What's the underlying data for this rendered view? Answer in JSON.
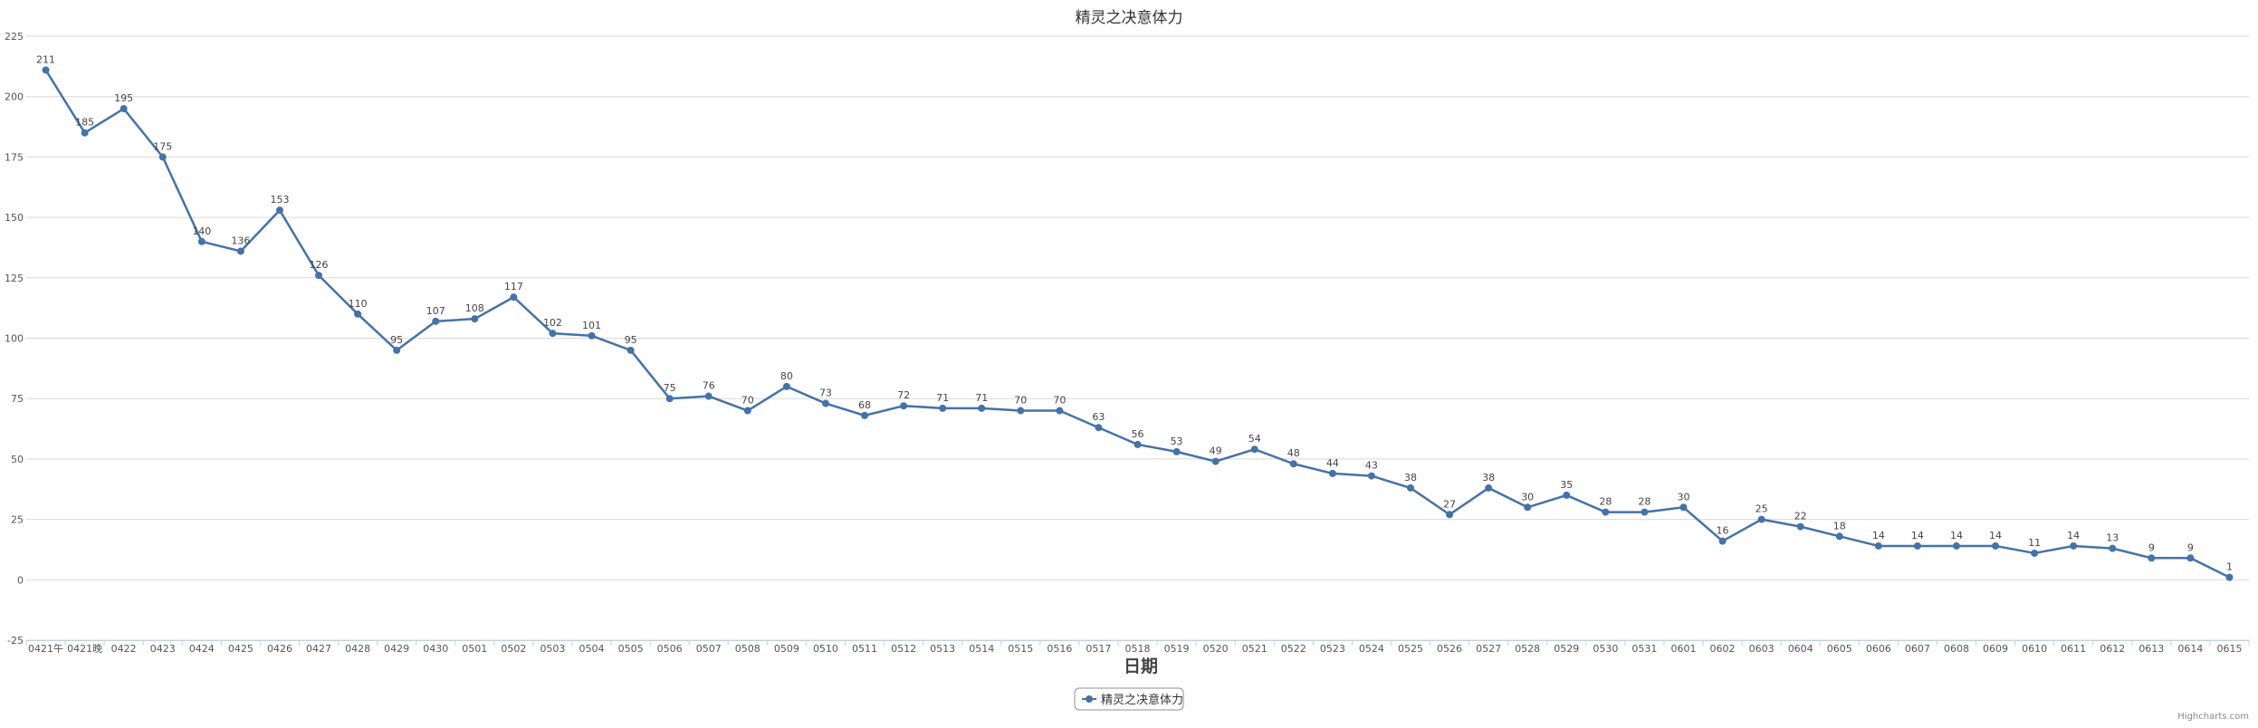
{
  "chart_data": {
    "type": "line",
    "title": "精灵之决意体力",
    "xlabel": "日期",
    "ylabel": "",
    "ylim": [
      -25,
      225
    ],
    "yticks": [
      -25,
      0,
      25,
      50,
      75,
      100,
      125,
      150,
      175,
      200,
      225
    ],
    "grid": true,
    "legend_position": "bottom-center",
    "categories": [
      "0421午",
      "0421晚",
      "0422",
      "0423",
      "0424",
      "0425",
      "0426",
      "0427",
      "0428",
      "0429",
      "0430",
      "0501",
      "0502",
      "0503",
      "0504",
      "0505",
      "0506",
      "0507",
      "0508",
      "0509",
      "0510",
      "0511",
      "0512",
      "0513",
      "0514",
      "0515",
      "0516",
      "0517",
      "0518",
      "0519",
      "0520",
      "0521",
      "0522",
      "0523",
      "0524",
      "0525",
      "0526",
      "0527",
      "0528",
      "0529",
      "0530",
      "0531",
      "0601",
      "0602",
      "0603",
      "0604",
      "0605",
      "0606",
      "0607",
      "0608",
      "0609",
      "0610",
      "0611",
      "0612",
      "0613",
      "0614",
      "0615"
    ],
    "series": [
      {
        "name": "精灵之决意体力",
        "color": "#4572a7",
        "values": [
          211,
          185,
          195,
          175,
          140,
          136,
          153,
          126,
          110,
          95,
          107,
          108,
          117,
          102,
          101,
          95,
          75,
          76,
          70,
          80,
          73,
          68,
          72,
          71,
          71,
          70,
          70,
          63,
          56,
          53,
          49,
          54,
          48,
          44,
          43,
          38,
          27,
          38,
          30,
          35,
          28,
          28,
          30,
          16,
          25,
          22,
          18,
          14,
          14,
          14,
          14,
          11,
          14,
          13,
          9,
          9,
          1
        ]
      }
    ]
  },
  "credits": "Highcharts.com"
}
